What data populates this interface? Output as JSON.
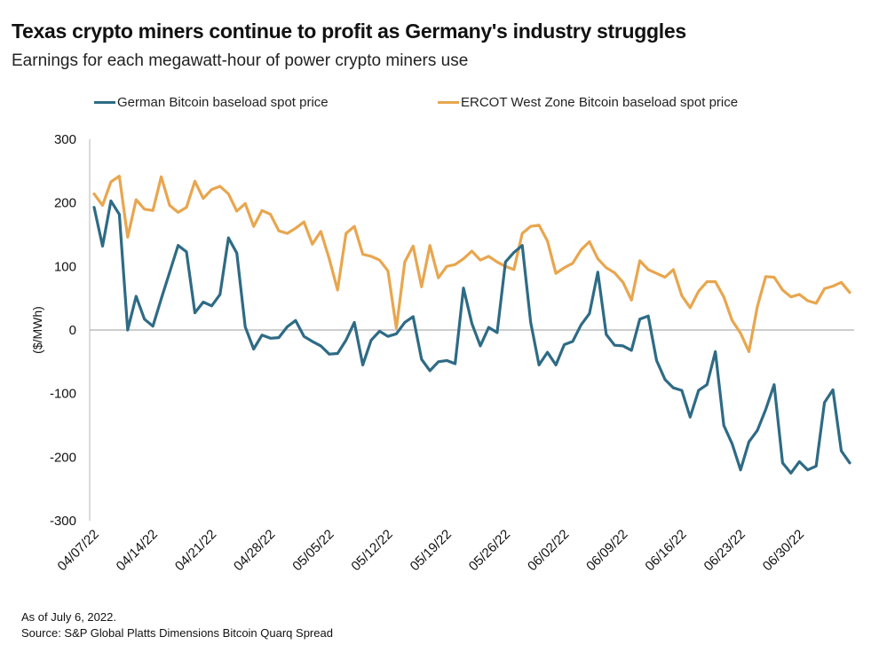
{
  "title": "Texas crypto miners continue to profit as Germany's industry struggles",
  "subtitle": "Earnings for each megawatt-hour of power crypto miners use",
  "footnote": "As of July 6, 2022.",
  "source": "Source: S&P Global Platts Dimensions Bitcoin Quarq Spread",
  "chart_data": {
    "type": "line",
    "title": "Texas crypto miners continue to profit as Germany's industry struggles",
    "subtitle": "Earnings for each megawatt-hour of power crypto miners use",
    "xlabel": "",
    "ylabel": "($/MWh)",
    "ylim": [
      -300,
      300
    ],
    "yticks": [
      300,
      200,
      100,
      0,
      -100,
      -200,
      -300
    ],
    "x_start": "04/07/22",
    "x_end": "07/06/22",
    "x_frequency": "daily",
    "xtick_labels": [
      "04/07/22",
      "04/14/22",
      "04/21/22",
      "04/28/22",
      "05/05/22",
      "05/12/22",
      "05/19/22",
      "05/26/22",
      "06/02/22",
      "06/09/22",
      "06/16/22",
      "06/23/22",
      "06/30/22"
    ],
    "xtick_step_days": 7,
    "grid": false,
    "legend_position": "top",
    "series": [
      {
        "name": "German Bitcoin baseload spot price",
        "color": "#2e6b85",
        "values": [
          193,
          132,
          203,
          182,
          0,
          53,
          17,
          6,
          49,
          91,
          133,
          123,
          27,
          44,
          38,
          56,
          145,
          121,
          5,
          -30,
          -8,
          -13,
          -12,
          5,
          15,
          -10,
          -18,
          -25,
          -38,
          -37,
          -16,
          12,
          -55,
          -16,
          -2,
          -10,
          -6,
          12,
          21,
          -46,
          -64,
          -50,
          -48,
          -53,
          66,
          10,
          -25,
          4,
          -4,
          107,
          122,
          133,
          12,
          -55,
          -35,
          -55,
          -23,
          -18,
          8,
          26,
          91,
          -7,
          -24,
          -25,
          -32,
          17,
          22,
          -48,
          -78,
          -91,
          -95,
          -137,
          -95,
          -86,
          -34,
          -150,
          -179,
          -220,
          -176,
          -158,
          -125,
          -86,
          -209,
          -225,
          -207,
          -220,
          -214,
          -114,
          -94,
          -190,
          -209
        ]
      },
      {
        "name": "ERCOT West Zone Bitcoin baseload spot price",
        "color": "#e8a64e",
        "values": [
          214,
          196,
          233,
          242,
          146,
          205,
          190,
          188,
          241,
          196,
          185,
          193,
          234,
          207,
          221,
          226,
          214,
          187,
          199,
          163,
          188,
          182,
          156,
          152,
          160,
          170,
          135,
          155,
          112,
          63,
          152,
          163,
          119,
          116,
          110,
          93,
          3,
          107,
          132,
          68,
          133,
          82,
          100,
          103,
          112,
          124,
          110,
          116,
          107,
          100,
          95,
          152,
          163,
          165,
          140,
          89,
          98,
          105,
          126,
          139,
          112,
          98,
          90,
          75,
          47,
          109,
          95,
          89,
          83,
          95,
          54,
          35,
          61,
          76,
          76,
          52,
          15,
          -5,
          -34,
          37,
          84,
          83,
          63,
          52,
          56,
          46,
          42,
          65,
          69,
          75,
          59
        ]
      }
    ]
  }
}
